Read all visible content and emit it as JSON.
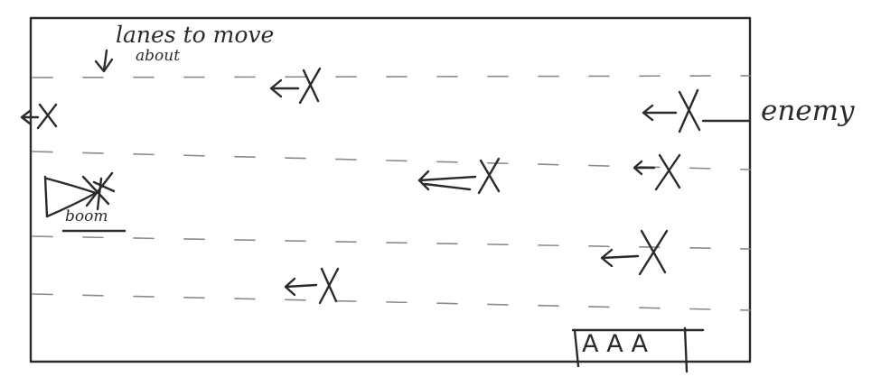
{
  "annotations": {
    "lanes_label": "lanes to move",
    "lanes_label_2": "about",
    "enemy_label": "enemy",
    "explosion_label": "boom"
  },
  "hud": {
    "lives_text": "AAA"
  },
  "icons": {
    "enemy": "x-with-arrow-icon",
    "player": "player-ship-icon",
    "explosion": "explosion-icon"
  },
  "colors": {
    "ink": "#2b2b2b",
    "lane": "#8a8a8a",
    "background": "#ffffff"
  }
}
